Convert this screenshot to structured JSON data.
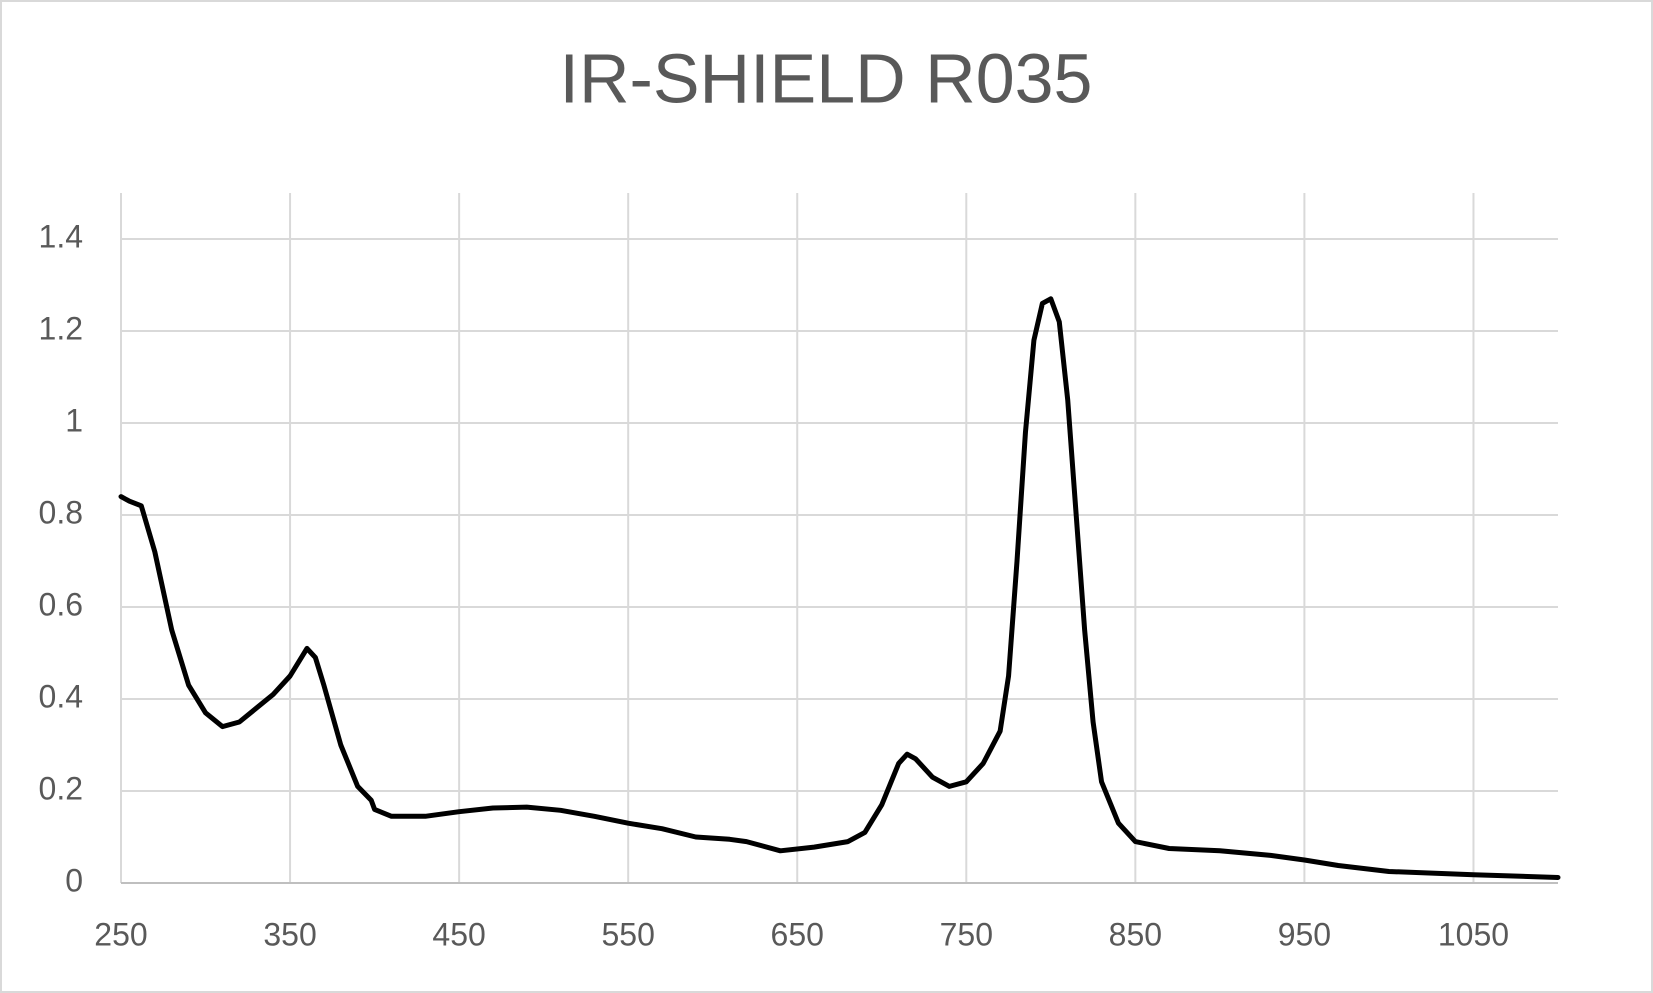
{
  "chart_data": {
    "type": "line",
    "title": "IR-SHIELD R035",
    "x": [
      250,
      255,
      262,
      270,
      280,
      290,
      300,
      310,
      320,
      330,
      340,
      350,
      360,
      365,
      370,
      380,
      390,
      398,
      400,
      410,
      430,
      450,
      470,
      490,
      510,
      530,
      550,
      570,
      590,
      610,
      620,
      640,
      660,
      680,
      690,
      700,
      710,
      715,
      720,
      730,
      740,
      750,
      760,
      770,
      775,
      780,
      785,
      790,
      795,
      800,
      805,
      810,
      815,
      820,
      825,
      830,
      840,
      850,
      870,
      900,
      930,
      950,
      970,
      1000,
      1050,
      1100
    ],
    "series": [
      {
        "name": "IR-SHIELD R035",
        "color": "#000000",
        "values": [
          0.84,
          0.83,
          0.82,
          0.72,
          0.55,
          0.43,
          0.37,
          0.34,
          0.35,
          0.38,
          0.41,
          0.45,
          0.51,
          0.49,
          0.43,
          0.3,
          0.21,
          0.18,
          0.16,
          0.145,
          0.145,
          0.155,
          0.163,
          0.165,
          0.158,
          0.145,
          0.13,
          0.118,
          0.1,
          0.095,
          0.09,
          0.07,
          0.078,
          0.09,
          0.11,
          0.17,
          0.26,
          0.28,
          0.27,
          0.23,
          0.21,
          0.22,
          0.26,
          0.33,
          0.45,
          0.7,
          0.98,
          1.18,
          1.26,
          1.27,
          1.22,
          1.05,
          0.8,
          0.55,
          0.35,
          0.22,
          0.13,
          0.09,
          0.075,
          0.07,
          0.06,
          0.05,
          0.038,
          0.025,
          0.018,
          0.012
        ]
      }
    ],
    "xlim": [
      250,
      1100
    ],
    "xticks": [
      250,
      350,
      450,
      550,
      650,
      750,
      850,
      950,
      1050
    ],
    "ylim": [
      0,
      1.5
    ],
    "yticks": [
      0,
      0.2,
      0.4,
      0.6,
      0.8,
      1,
      1.2,
      1.4
    ],
    "grid": true
  }
}
